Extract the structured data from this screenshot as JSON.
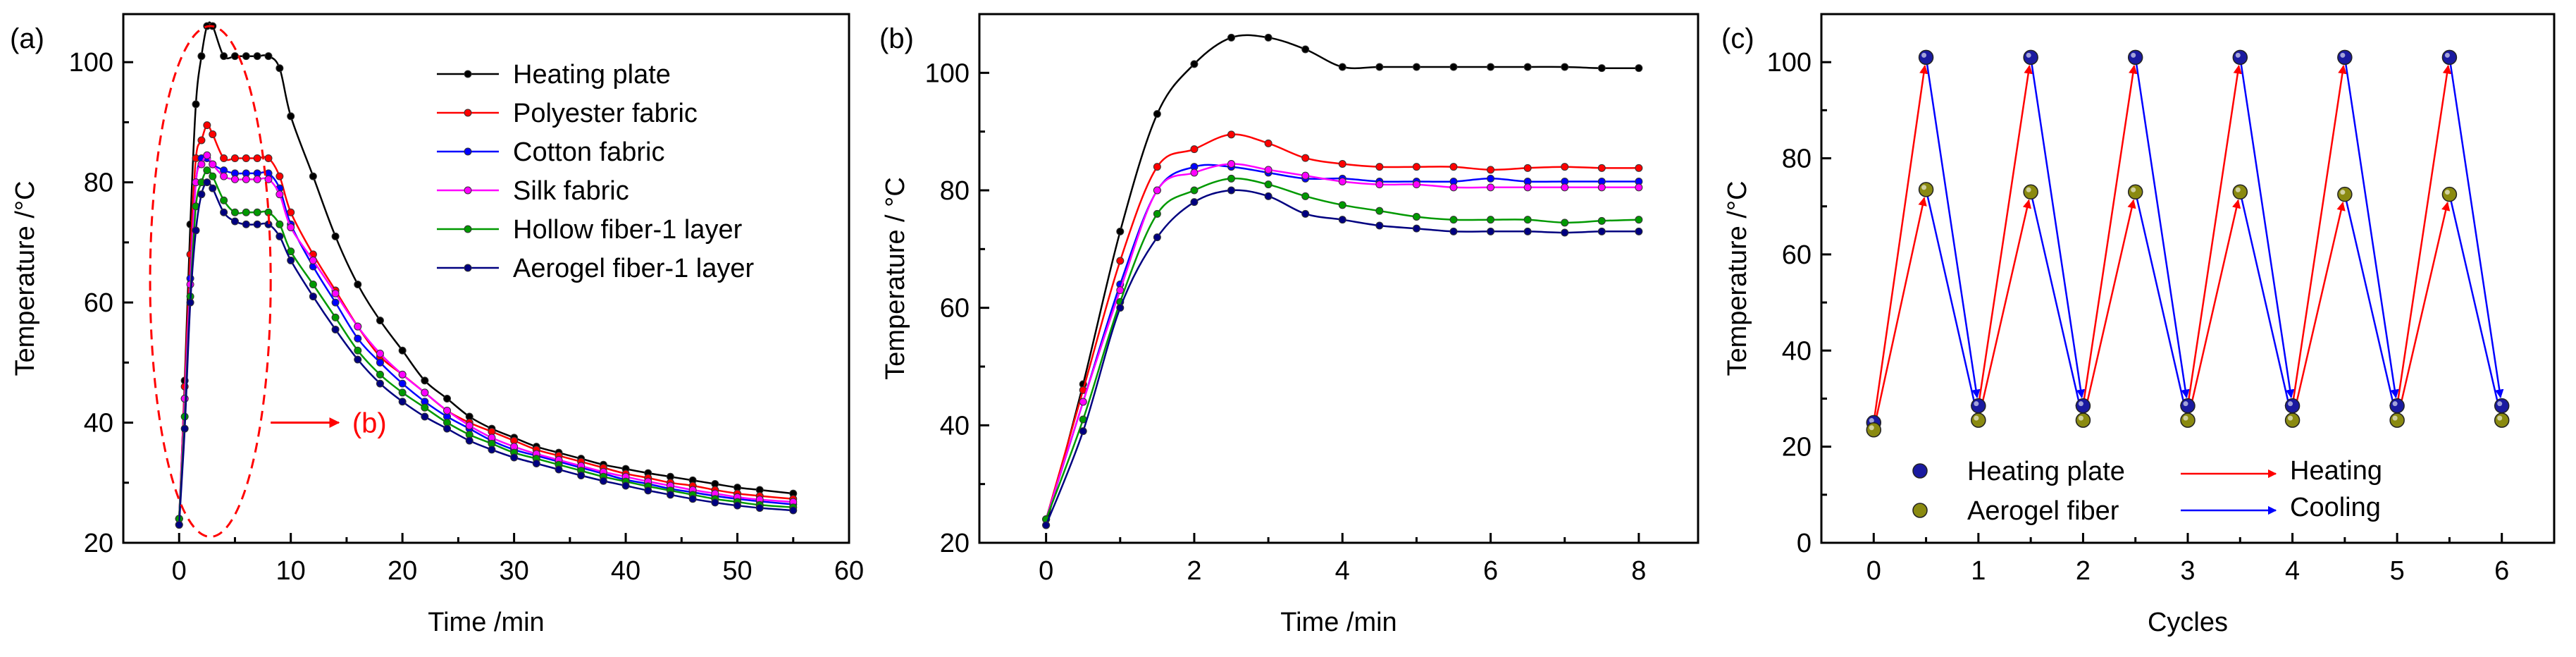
{
  "chart_data": [
    {
      "panel": "(a)",
      "type": "line",
      "title": "",
      "xlabel": "Time /min",
      "ylabel": "Temperature /°C",
      "xlim": [
        -5,
        60
      ],
      "ylim": [
        20,
        108
      ],
      "xticks": [
        0,
        10,
        20,
        30,
        40,
        50,
        60
      ],
      "yticks": [
        20,
        40,
        60,
        80,
        100
      ],
      "legend_position": "top-right",
      "annotations": [
        {
          "text": "(b)",
          "color": "#ff0000",
          "points_to": "zoomed heating region"
        }
      ],
      "series": [
        {
          "name": "Heating plate",
          "color": "#000000",
          "x": [
            0,
            0.5,
            1,
            1.5,
            2,
            2.5,
            3,
            4,
            5,
            6,
            7,
            8,
            9,
            10,
            12,
            14,
            16,
            18,
            20,
            22,
            24,
            26,
            28,
            30,
            32,
            34,
            36,
            38,
            40,
            42,
            44,
            46,
            48,
            50,
            52,
            55
          ],
          "y": [
            23,
            47,
            73,
            93,
            101,
            106,
            106,
            101,
            101,
            101,
            101,
            101,
            99,
            91,
            81,
            71,
            63,
            57,
            52,
            47,
            44,
            41,
            39,
            37.5,
            36,
            35,
            34,
            33,
            32.3,
            31.6,
            31,
            30.4,
            29.8,
            29.2,
            28.8,
            28.2
          ]
        },
        {
          "name": "Polyester fabric",
          "color": "#ff0000",
          "x": [
            0,
            0.5,
            1,
            1.5,
            2,
            2.5,
            3,
            4,
            5,
            6,
            7,
            8,
            9,
            10,
            12,
            14,
            16,
            18,
            20,
            22,
            24,
            26,
            28,
            30,
            32,
            34,
            36,
            38,
            40,
            42,
            44,
            46,
            48,
            50,
            52,
            55
          ],
          "y": [
            24,
            46,
            68,
            84,
            87,
            89.5,
            88,
            84,
            84,
            84,
            84,
            84,
            81,
            75,
            68,
            62,
            56,
            51,
            48,
            45,
            42,
            40,
            38.5,
            37,
            35.5,
            34.5,
            33.5,
            32.5,
            31.5,
            30.8,
            30,
            29.5,
            28.8,
            28.2,
            27.8,
            27.3
          ]
        },
        {
          "name": "Cotton fabric",
          "color": "#0000ff",
          "x": [
            0,
            0.5,
            1,
            1.5,
            2,
            2.5,
            3,
            4,
            5,
            6,
            7,
            8,
            9,
            10,
            12,
            14,
            16,
            18,
            20,
            22,
            24,
            26,
            28,
            30,
            32,
            34,
            36,
            38,
            40,
            42,
            44,
            46,
            48,
            50,
            52,
            55
          ],
          "y": [
            24,
            44,
            64,
            80,
            84,
            84,
            83,
            82,
            81.5,
            81.5,
            81.5,
            81.5,
            79,
            73,
            66,
            60,
            54,
            50,
            46.5,
            43.5,
            41,
            39,
            37,
            35.5,
            34.5,
            33.5,
            32.5,
            31.5,
            30.5,
            29.8,
            29,
            28.4,
            27.8,
            27.3,
            26.9,
            26.4
          ]
        },
        {
          "name": "Silk fabric",
          "color": "#ff00ff",
          "x": [
            0,
            0.5,
            1,
            1.5,
            2,
            2.5,
            3,
            4,
            5,
            6,
            7,
            8,
            9,
            10,
            12,
            14,
            16,
            18,
            20,
            22,
            24,
            26,
            28,
            30,
            32,
            34,
            36,
            38,
            40,
            42,
            44,
            46,
            48,
            50,
            52,
            55
          ],
          "y": [
            24,
            44,
            63,
            80,
            83,
            84.5,
            83,
            81,
            80.5,
            80.5,
            80.5,
            80.5,
            78,
            72.5,
            67,
            61.5,
            56,
            51.5,
            48,
            45,
            42,
            39.5,
            37.5,
            36,
            34.8,
            33.8,
            32.8,
            31.8,
            31,
            30.2,
            29.5,
            28.8,
            28.2,
            27.6,
            27.2,
            26.8
          ]
        },
        {
          "name": "Hollow fiber-1 layer",
          "color": "#009900",
          "x": [
            0,
            0.5,
            1,
            1.5,
            2,
            2.5,
            3,
            4,
            5,
            6,
            7,
            8,
            9,
            10,
            12,
            14,
            16,
            18,
            20,
            22,
            24,
            26,
            28,
            30,
            32,
            34,
            36,
            38,
            40,
            42,
            44,
            46,
            48,
            50,
            52,
            55
          ],
          "y": [
            24,
            41,
            61,
            76,
            80,
            82,
            81,
            77,
            75,
            75,
            75,
            75,
            73,
            68.5,
            63,
            57.5,
            52,
            48,
            45,
            42.5,
            40,
            38,
            36.5,
            35,
            34,
            33,
            32,
            31,
            30.2,
            29.4,
            28.7,
            28,
            27.3,
            26.8,
            26.3,
            25.9
          ]
        },
        {
          "name": "Aerogel fiber-1 layer",
          "color": "#000080",
          "x": [
            0,
            0.5,
            1,
            1.5,
            2,
            2.5,
            3,
            4,
            5,
            6,
            7,
            8,
            9,
            10,
            12,
            14,
            16,
            18,
            20,
            22,
            24,
            26,
            28,
            30,
            32,
            34,
            36,
            38,
            40,
            42,
            44,
            46,
            48,
            50,
            52,
            55
          ],
          "y": [
            23,
            39,
            60,
            72,
            78,
            80,
            79,
            75,
            73.5,
            73,
            73,
            73,
            71,
            67,
            61,
            55.5,
            50.5,
            46.5,
            43.5,
            41,
            39,
            37,
            35.5,
            34.2,
            33.2,
            32.2,
            31.2,
            30.3,
            29.5,
            28.7,
            28,
            27.3,
            26.7,
            26.2,
            25.8,
            25.4
          ]
        }
      ]
    },
    {
      "panel": "(b)",
      "type": "line",
      "title": "",
      "xlabel": "Time /min",
      "ylabel": "Temperature / °C",
      "xlim": [
        -0.9,
        8.8
      ],
      "ylim": [
        20,
        110
      ],
      "xticks": [
        0,
        2,
        4,
        6,
        8
      ],
      "yticks": [
        20,
        40,
        60,
        80,
        100
      ],
      "series": [
        {
          "name": "Heating plate",
          "color": "#000000",
          "x": [
            0,
            0.5,
            1,
            1.5,
            2,
            2.5,
            3,
            3.5,
            4,
            4.5,
            5,
            5.5,
            6,
            6.5,
            7,
            7.5,
            8
          ],
          "y": [
            23,
            47,
            73,
            93,
            101.5,
            106,
            106,
            104,
            101,
            101,
            101,
            101,
            101,
            101,
            101,
            100.8,
            100.8
          ]
        },
        {
          "name": "Polyester fabric",
          "color": "#ff0000",
          "x": [
            0,
            0.5,
            1,
            1.5,
            2,
            2.5,
            3,
            3.5,
            4,
            4.5,
            5,
            5.5,
            6,
            6.5,
            7,
            7.5,
            8
          ],
          "y": [
            24,
            46,
            68,
            84,
            87,
            89.5,
            88,
            85.5,
            84.5,
            84,
            84,
            84,
            83.5,
            83.8,
            84,
            83.8,
            83.8
          ]
        },
        {
          "name": "Cotton fabric",
          "color": "#0000ff",
          "x": [
            0,
            0.5,
            1,
            1.5,
            2,
            2.5,
            3,
            3.5,
            4,
            4.5,
            5,
            5.5,
            6,
            6.5,
            7,
            7.5,
            8
          ],
          "y": [
            24,
            44,
            64,
            80,
            84,
            84,
            83,
            82,
            82,
            81.5,
            81.5,
            81.5,
            82,
            81.5,
            81.5,
            81.5,
            81.5
          ]
        },
        {
          "name": "Silk fabric",
          "color": "#ff00ff",
          "x": [
            0,
            0.5,
            1,
            1.5,
            2,
            2.5,
            3,
            3.5,
            4,
            4.5,
            5,
            5.5,
            6,
            6.5,
            7,
            7.5,
            8
          ],
          "y": [
            24,
            44,
            63,
            80,
            83,
            84.5,
            83.5,
            82.5,
            81.5,
            81,
            81,
            80.5,
            80.5,
            80.5,
            80.5,
            80.5,
            80.5
          ]
        },
        {
          "name": "Hollow fiber-1 layer",
          "color": "#009900",
          "x": [
            0,
            0.5,
            1,
            1.5,
            2,
            2.5,
            3,
            3.5,
            4,
            4.5,
            5,
            5.5,
            6,
            6.5,
            7,
            7.5,
            8
          ],
          "y": [
            24,
            41,
            61,
            76,
            80,
            82,
            81,
            79,
            77.5,
            76.5,
            75.5,
            75,
            75,
            75,
            74.5,
            74.8,
            75
          ]
        },
        {
          "name": "Aerogel fiber-1 layer",
          "color": "#000080",
          "x": [
            0,
            0.5,
            1,
            1.5,
            2,
            2.5,
            3,
            3.5,
            4,
            4.5,
            5,
            5.5,
            6,
            6.5,
            7,
            7.5,
            8
          ],
          "y": [
            23,
            39,
            60,
            72,
            78,
            80,
            79,
            76,
            75,
            74,
            73.5,
            73,
            73,
            73,
            72.8,
            73,
            73
          ]
        }
      ]
    },
    {
      "panel": "(c)",
      "type": "scatter",
      "title": "",
      "xlabel": "Cycles",
      "ylabel": "Temperature /°C",
      "xlim": [
        -0.5,
        6.5
      ],
      "ylim": [
        0,
        110
      ],
      "xticks": [
        0,
        1,
        2,
        3,
        4,
        5,
        6
      ],
      "yticks": [
        0,
        20,
        40,
        60,
        80,
        100
      ],
      "legend_position": "bottom-left",
      "legend": {
        "markers": [
          {
            "label": "Heating plate",
            "color": "#1a1aa0"
          },
          {
            "label": "Aerogel fiber",
            "color": "#8a8a10"
          }
        ],
        "arrows": [
          {
            "label": "Heating",
            "color": "#ff0000"
          },
          {
            "label": "Cooling",
            "color": "#0000ff"
          }
        ]
      },
      "series": [
        {
          "name": "Heating plate",
          "color": "#1a1aa0",
          "x": [
            0,
            0.5,
            1,
            1.5,
            2,
            2.5,
            3,
            3.5,
            4,
            4.5,
            5,
            5.5,
            6
          ],
          "y": [
            25,
            101,
            28.5,
            101,
            28.5,
            101,
            28.5,
            101,
            28.5,
            101,
            28.5,
            101,
            28.5
          ]
        },
        {
          "name": "Aerogel fiber",
          "color": "#8a8a10",
          "x": [
            0,
            0.5,
            1,
            1.5,
            2,
            2.5,
            3,
            3.5,
            4,
            4.5,
            5,
            5.5,
            6
          ],
          "y": [
            23.5,
            73.5,
            25.5,
            73,
            25.5,
            73,
            25.5,
            73,
            25.5,
            72.5,
            25.5,
            72.5,
            25.5
          ]
        }
      ]
    }
  ]
}
